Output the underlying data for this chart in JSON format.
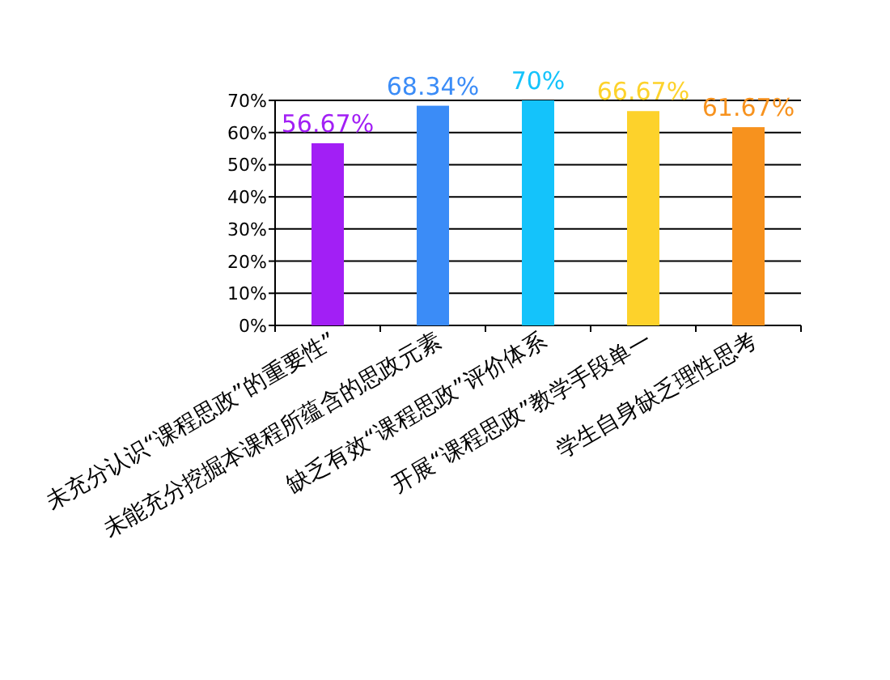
{
  "chart_data": {
    "type": "bar",
    "categories": [
      "未充分认识“课程思政”的重要性”",
      "未能充分挖掘本课程所蕴含的思政元素",
      "缺乏有效“课程思政”评价体系",
      "开展“课程思政”教学手段单一",
      "学生自身缺乏理性思考"
    ],
    "values": [
      56.67,
      68.34,
      70,
      66.67,
      61.67
    ],
    "colors": [
      "#a21ff5",
      "#3b8cf7",
      "#14c3fb",
      "#fdd22b",
      "#f7921e"
    ],
    "value_labels": [
      "56.67%",
      "68.34%",
      "70%",
      "66.67%",
      "61.67%"
    ],
    "ylim": [
      0,
      70
    ],
    "yticks": [
      {
        "value": 0,
        "label": "0%"
      },
      {
        "value": 10,
        "label": "10%"
      },
      {
        "value": 20,
        "label": "20%"
      },
      {
        "value": 30,
        "label": "30%"
      },
      {
        "value": 40,
        "label": "40%"
      },
      {
        "value": 50,
        "label": "50%"
      },
      {
        "value": 60,
        "label": "60%"
      },
      {
        "value": 70,
        "label": "70%"
      }
    ],
    "grid": "y"
  }
}
